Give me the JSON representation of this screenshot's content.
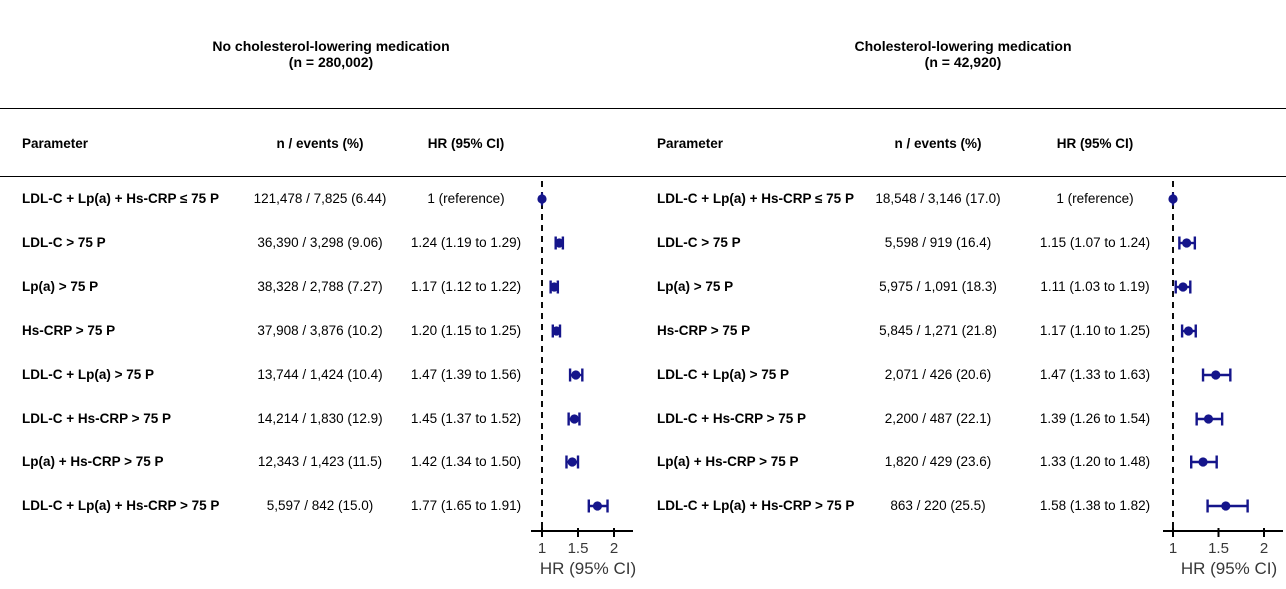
{
  "columns": {
    "parameter": "Parameter",
    "n_events": "n / events (%)",
    "hr": "HR (95% CI)"
  },
  "axis": {
    "label": "HR (95% CI)",
    "ticks": [
      "1",
      "1.5",
      "2"
    ],
    "tick_values": [
      1,
      1.5,
      2
    ]
  },
  "style": {
    "marker_color": "#15158b",
    "line_color": "#000000",
    "axis_text_color": "#383838"
  },
  "chart_data": [
    {
      "type": "scatter",
      "subtype": "forest-plot",
      "title": "No cholesterol-lowering medication",
      "subtitle": "(n = 280,002)",
      "xlabel": "HR (95% CI)",
      "xlim": [
        0.85,
        2.27
      ],
      "x_ticks": [
        1,
        1.5,
        2
      ],
      "reference_line": 1,
      "grid": false,
      "rows": [
        {
          "parameter": "LDL-C + Lp(a) + Hs-CRP ≤ 75 P",
          "n_events": "121,478 / 7,825 (6.44)",
          "hr_label": "1 (reference)",
          "hr": 1,
          "lo": null,
          "hi": null
        },
        {
          "parameter": "LDL-C > 75 P",
          "n_events": "36,390 / 3,298 (9.06)",
          "hr_label": "1.24 (1.19 to 1.29)",
          "hr": 1.24,
          "lo": 1.19,
          "hi": 1.29
        },
        {
          "parameter": "Lp(a) > 75 P",
          "n_events": "38,328 / 2,788 (7.27)",
          "hr_label": "1.17 (1.12 to 1.22)",
          "hr": 1.17,
          "lo": 1.12,
          "hi": 1.22
        },
        {
          "parameter": "Hs-CRP > 75 P",
          "n_events": "37,908 / 3,876 (10.2)",
          "hr_label": "1.20 (1.15 to 1.25)",
          "hr": 1.2,
          "lo": 1.15,
          "hi": 1.25
        },
        {
          "parameter": "LDL-C + Lp(a) > 75 P",
          "n_events": "13,744 / 1,424 (10.4)",
          "hr_label": "1.47 (1.39 to 1.56)",
          "hr": 1.47,
          "lo": 1.39,
          "hi": 1.56
        },
        {
          "parameter": "LDL-C + Hs-CRP > 75 P",
          "n_events": "14,214 / 1,830 (12.9)",
          "hr_label": "1.45 (1.37 to 1.52)",
          "hr": 1.45,
          "lo": 1.37,
          "hi": 1.52
        },
        {
          "parameter": "Lp(a) + Hs-CRP > 75 P",
          "n_events": "12,343 / 1,423 (11.5)",
          "hr_label": "1.42 (1.34 to 1.50)",
          "hr": 1.42,
          "lo": 1.34,
          "hi": 1.5
        },
        {
          "parameter": "LDL-C + Lp(a) + Hs-CRP > 75 P",
          "n_events": "5,597 / 842 (15.0)",
          "hr_label": "1.77 (1.65 to 1.91)",
          "hr": 1.77,
          "lo": 1.65,
          "hi": 1.91
        }
      ]
    },
    {
      "type": "scatter",
      "subtype": "forest-plot",
      "title": "Cholesterol-lowering medication",
      "subtitle": "(n = 42,920)",
      "xlabel": "HR (95% CI)",
      "xlim": [
        0.89,
        2.21
      ],
      "x_ticks": [
        1,
        1.5,
        2
      ],
      "reference_line": 1,
      "grid": false,
      "rows": [
        {
          "parameter": "LDL-C + Lp(a) + Hs-CRP ≤ 75 P",
          "n_events": "18,548 / 3,146 (17.0)",
          "hr_label": "1 (reference)",
          "hr": 1,
          "lo": null,
          "hi": null
        },
        {
          "parameter": "LDL-C > 75 P",
          "n_events": "5,598 / 919 (16.4)",
          "hr_label": "1.15 (1.07 to 1.24)",
          "hr": 1.15,
          "lo": 1.07,
          "hi": 1.24
        },
        {
          "parameter": "Lp(a) > 75 P",
          "n_events": "5,975 / 1,091 (18.3)",
          "hr_label": "1.11 (1.03 to 1.19)",
          "hr": 1.11,
          "lo": 1.03,
          "hi": 1.19
        },
        {
          "parameter": "Hs-CRP > 75 P",
          "n_events": "5,845 / 1,271 (21.8)",
          "hr_label": "1.17 (1.10 to 1.25)",
          "hr": 1.17,
          "lo": 1.1,
          "hi": 1.25
        },
        {
          "parameter": "LDL-C + Lp(a) > 75 P",
          "n_events": "2,071 / 426 (20.6)",
          "hr_label": "1.47 (1.33 to 1.63)",
          "hr": 1.47,
          "lo": 1.33,
          "hi": 1.63
        },
        {
          "parameter": "LDL-C + Hs-CRP > 75 P",
          "n_events": "2,200 / 487 (22.1)",
          "hr_label": "1.39 (1.26 to 1.54)",
          "hr": 1.39,
          "lo": 1.26,
          "hi": 1.54
        },
        {
          "parameter": "Lp(a) + Hs-CRP > 75 P",
          "n_events": "1,820 / 429 (23.6)",
          "hr_label": "1.33 (1.20 to 1.48)",
          "hr": 1.33,
          "lo": 1.2,
          "hi": 1.48
        },
        {
          "parameter": "LDL-C + Lp(a) + Hs-CRP > 75 P",
          "n_events": "863 / 220 (25.5)",
          "hr_label": "1.58 (1.38 to 1.82)",
          "hr": 1.58,
          "lo": 1.38,
          "hi": 1.82
        }
      ]
    }
  ]
}
